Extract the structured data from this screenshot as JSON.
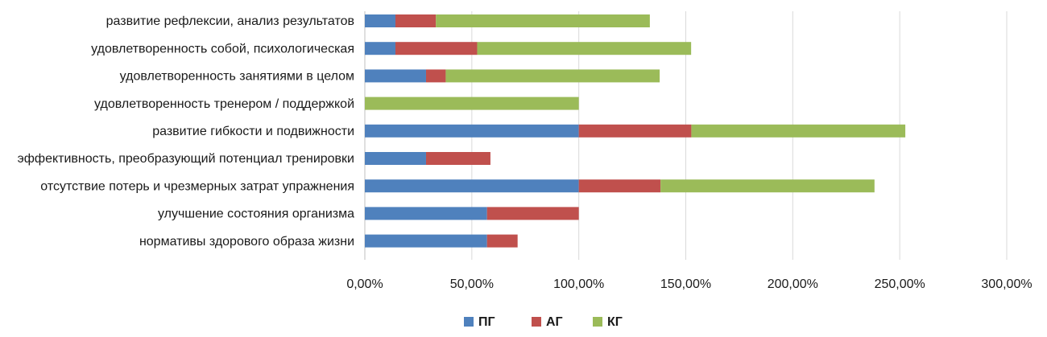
{
  "chart_data": {
    "type": "bar",
    "orientation": "horizontal",
    "stacked": true,
    "categories": [
      "развитие  рефлексии, анализ результатов",
      "удовлетворенность собой, психологическая",
      "удовлетворенность занятиями  в целом",
      "удовлетворенность тренером / поддержкой",
      "развитие гибкости и подвижности",
      "эффективность, преобразующий потенциал тренировки",
      "отсутствие потерь и чрезмерных затрат  упражнения",
      "улучшение состояния организма",
      "нормативы здорового образа жизни"
    ],
    "series": [
      {
        "name": "ПГ",
        "color": "#4f81bd",
        "values": [
          14.3,
          14.3,
          28.6,
          0,
          100,
          28.6,
          100,
          57.1,
          57.1
        ]
      },
      {
        "name": "АГ",
        "color": "#c0504d",
        "values": [
          18.9,
          38.2,
          9.2,
          0,
          52.6,
          30.1,
          38.2,
          42.9,
          14.3
        ]
      },
      {
        "name": "КГ",
        "color": "#9bbb59",
        "values": [
          100,
          100,
          100,
          100,
          100,
          0,
          100,
          0,
          0
        ]
      }
    ],
    "xlim": [
      0,
      300
    ],
    "xticks": [
      0,
      50,
      100,
      150,
      200,
      250,
      300
    ],
    "xtick_labels": [
      "0,00%",
      "50,00%",
      "100,00%",
      "150,00%",
      "200,00%",
      "250,00%",
      "300,00%"
    ],
    "grid": "vertical",
    "legend_position": "bottom",
    "title": "",
    "xlabel": "",
    "ylabel": ""
  }
}
